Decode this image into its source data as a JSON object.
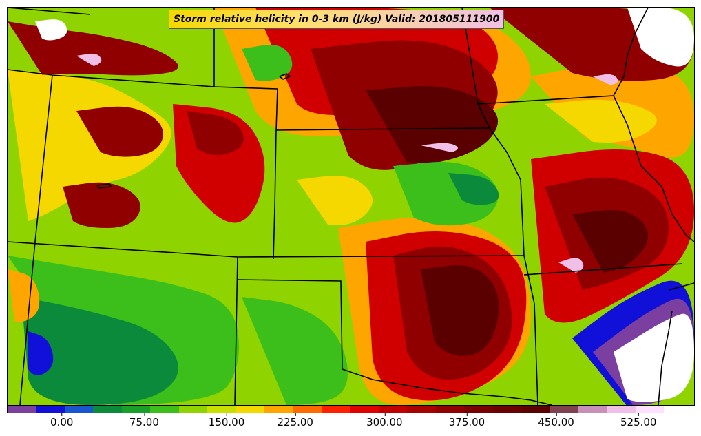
{
  "title": "Storm relative helicity in 0-3 km (J/kg) Valid: 201805111900",
  "colorbar": {
    "colors": [
      "#7b3fa0",
      "#1010d8",
      "#1a55d0",
      "#0a8a3a",
      "#1aa02a",
      "#3cbf1a",
      "#8fd400",
      "#c8e000",
      "#f5d800",
      "#ffa500",
      "#ff6a00",
      "#ff2000",
      "#e00000",
      "#c00000",
      "#a80000",
      "#900000",
      "#780000",
      "#6a0000",
      "#5a0000",
      "#804050",
      "#c890b8",
      "#f0c0e8",
      "#ffe0ff",
      "#ffffff"
    ],
    "ticks": [
      "0.00",
      "75.00",
      "150.00",
      "225.00",
      "300.00",
      "375.00",
      "450.00",
      "525.00"
    ],
    "tick_positions_frac": [
      0.08,
      0.2,
      0.32,
      0.42,
      0.55,
      0.67,
      0.8,
      0.92
    ]
  },
  "palette": {
    "bg": "#8fd400",
    "purple": "#7b3fa0",
    "blue": "#1010d8",
    "dkgreen": "#0a8a3a",
    "green": "#3cbf1a",
    "yellow": "#f5d800",
    "orange": "#ffa500",
    "redorange": "#ff4000",
    "red": "#d00000",
    "dkred": "#900000",
    "maroon": "#5a0000",
    "pink": "#f0c0e8",
    "white": "#ffffff"
  }
}
